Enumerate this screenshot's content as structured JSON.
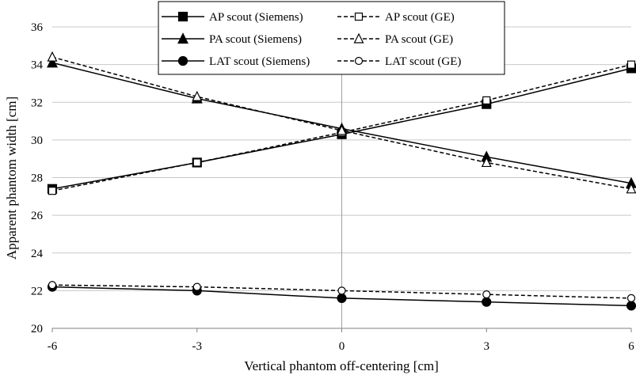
{
  "chart_data": {
    "type": "line",
    "title": "",
    "xlabel": "Vertical phantom off-centering [cm]",
    "ylabel": "Apparent phantom width [cm]",
    "x": [
      -6,
      -3,
      0,
      3,
      6
    ],
    "xticks": [
      -6,
      -3,
      0,
      3,
      6
    ],
    "yticks": [
      20,
      22,
      24,
      26,
      28,
      30,
      32,
      34,
      36
    ],
    "xlim": [
      -6,
      6
    ],
    "ylim": [
      20,
      36
    ],
    "grid": "horizontal",
    "legend_position": "top-center",
    "series": [
      {
        "name": "AP scout (Siemens)",
        "values": [
          27.4,
          28.8,
          30.3,
          31.9,
          33.8
        ],
        "marker": "square-filled",
        "line": "solid"
      },
      {
        "name": "AP scout (GE)",
        "values": [
          27.3,
          28.8,
          30.4,
          32.1,
          34.0
        ],
        "marker": "square-open",
        "line": "dashed"
      },
      {
        "name": "PA scout (Siemens)",
        "values": [
          34.1,
          32.2,
          30.6,
          29.1,
          27.7
        ],
        "marker": "triangle-filled",
        "line": "solid"
      },
      {
        "name": "PA scout (GE)",
        "values": [
          34.4,
          32.3,
          30.5,
          28.8,
          27.4
        ],
        "marker": "triangle-open",
        "line": "dashed"
      },
      {
        "name": "LAT scout (Siemens)",
        "values": [
          22.2,
          22.0,
          21.6,
          21.4,
          21.2
        ],
        "marker": "circle-filled",
        "line": "solid"
      },
      {
        "name": "LAT scout (GE)",
        "values": [
          22.3,
          22.2,
          22.0,
          21.8,
          21.6
        ],
        "marker": "circle-open",
        "line": "dashed"
      }
    ],
    "legend_order": [
      0,
      1,
      2,
      3,
      4,
      5
    ]
  }
}
